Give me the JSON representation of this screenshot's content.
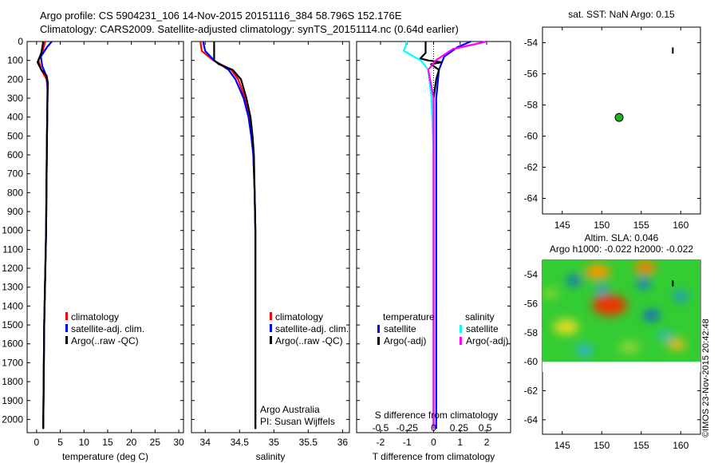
{
  "header": {
    "line1": "Argo profile: CS 5904231_106 14-Nov-2015 20151116_384 58.796S 152.176E",
    "line2": "Climatology: CARS2009. Satellite-adjusted climatology: synTS_20151114.nc (0.64d earlier)"
  },
  "credit": "©IMOS 23-Nov-2015 20:42:48",
  "colors": {
    "climatology": "#ff0000",
    "satellite": "#0000ff",
    "argo": "#000000",
    "sal_satellite": "#00ffff",
    "sal_argo": "#ff00ff",
    "marker": "#1db31d"
  },
  "chart_data": [
    {
      "type": "line",
      "id": "temperature",
      "xlabel": "temperature (deg C)",
      "xlim": [
        -2,
        31
      ],
      "ylim": [
        2070,
        0
      ],
      "xticks": [
        0,
        5,
        10,
        15,
        20,
        25,
        30
      ],
      "yticks": [
        0,
        100,
        200,
        300,
        400,
        500,
        600,
        700,
        800,
        900,
        1000,
        1100,
        1200,
        1300,
        1400,
        1500,
        1600,
        1700,
        1800,
        1900,
        2000
      ],
      "legend": {
        "position": "bottom-right",
        "entries": [
          "climatology",
          "satellite-adj. clim.",
          "Argo(..raw -QC)"
        ]
      },
      "series": [
        {
          "name": "climatology",
          "depth": [
            0,
            50,
            100,
            150,
            200,
            250,
            300,
            500,
            700,
            1000,
            1500,
            2050
          ],
          "values": [
            1.8,
            1.3,
            0.4,
            1.0,
            2.1,
            2.3,
            2.3,
            2.2,
            2.1,
            2.0,
            1.6,
            1.4
          ]
        },
        {
          "name": "satellite-adj. clim.",
          "depth": [
            0,
            30,
            80,
            130,
            180,
            220,
            300,
            500,
            700,
            1000,
            1500,
            2050
          ],
          "values": [
            3.2,
            2.2,
            0.9,
            1.2,
            2.0,
            2.3,
            2.3,
            2.2,
            2.1,
            2.0,
            1.6,
            1.4
          ]
        },
        {
          "name": "Argo(..raw -QC)",
          "depth": [
            0,
            60,
            110,
            150,
            180,
            220,
            300,
            500,
            700,
            1000,
            1500,
            2050
          ],
          "values": [
            1.4,
            1.0,
            0.2,
            1.0,
            2.1,
            2.4,
            2.3,
            2.2,
            2.1,
            2.0,
            1.6,
            1.4
          ]
        }
      ]
    },
    {
      "type": "line",
      "id": "salinity",
      "xlabel": "salinity",
      "xlim": [
        33.8,
        36.1
      ],
      "ylim": [
        2070,
        0
      ],
      "xticks": [
        34,
        34.5,
        35,
        35.5,
        36
      ],
      "legend": {
        "position": "bottom-right",
        "entries": [
          "climatology",
          "satellite-adj. clim.",
          "Argo(..raw -QC)"
        ]
      },
      "annotation": {
        "institution": "Argo Australia",
        "pi": "PI: Susan Wijffels"
      },
      "series": [
        {
          "name": "climatology",
          "depth": [
            0,
            50,
            100,
            150,
            200,
            300,
            400,
            500,
            600,
            800,
            1000,
            1500,
            2050
          ],
          "values": [
            33.93,
            33.95,
            34.12,
            34.38,
            34.48,
            34.58,
            34.64,
            34.68,
            34.7,
            34.72,
            34.73,
            34.73,
            34.73
          ]
        },
        {
          "name": "satellite-adj. clim.",
          "depth": [
            0,
            50,
            100,
            150,
            200,
            300,
            400,
            500,
            600,
            800,
            1000,
            1500,
            2050
          ],
          "values": [
            33.97,
            34.0,
            34.13,
            34.34,
            34.44,
            34.56,
            34.63,
            34.67,
            34.7,
            34.72,
            34.73,
            34.73,
            34.73
          ]
        },
        {
          "name": "Argo(..raw -QC)",
          "depth": [
            0,
            100,
            120,
            150,
            200,
            300,
            400,
            500,
            600,
            800,
            1000,
            1500,
            2050
          ],
          "values": [
            34.13,
            34.13,
            34.2,
            34.4,
            34.52,
            34.6,
            34.66,
            34.69,
            34.71,
            34.72,
            34.73,
            34.73,
            34.73
          ]
        }
      ]
    },
    {
      "type": "line",
      "id": "difference",
      "xlabel": "T difference from climatology",
      "xlabel_top": "S difference from climatology",
      "xlim": [
        -2.9,
        2.9
      ],
      "ylim": [
        2070,
        0
      ],
      "xticks": [
        -2,
        -1,
        0,
        1,
        2
      ],
      "xticks_top_labels": [
        "-0.5",
        "-0.25",
        "0",
        "0.25",
        "0.5"
      ],
      "legend": {
        "position": "bottom",
        "headers": [
          "temperature",
          "salinity"
        ],
        "entries": [
          "satellite",
          "Argo(-adj)",
          "satellite",
          "Argo(-adj)"
        ]
      },
      "series": [
        {
          "name": "satellite",
          "group": "temperature",
          "depth": [
            0,
            30,
            80,
            150,
            300,
            600,
            1000,
            1500,
            2050
          ],
          "values": [
            1.4,
            0.9,
            0.4,
            0.2,
            0.1,
            0.1,
            0.1,
            0.1,
            0.1
          ]
        },
        {
          "name": "Argo(-adj)",
          "group": "temperature",
          "depth": [
            0,
            60,
            90,
            100,
            110,
            120,
            150,
            200,
            300,
            600,
            1000,
            1500,
            2050
          ],
          "values": [
            -0.3,
            -0.3,
            -0.5,
            -0.2,
            0.3,
            -0.1,
            0.2,
            0.1,
            0,
            0,
            0,
            0,
            0
          ]
        },
        {
          "name": "satellite",
          "group": "salinity",
          "depth": [
            0,
            50,
            100,
            150,
            300,
            600,
            1000,
            1500,
            2050
          ],
          "values": [
            -0.25,
            -0.28,
            -0.12,
            -0.05,
            -0.02,
            0,
            0,
            0,
            0
          ]
        },
        {
          "name": "Argo(-adj)",
          "group": "salinity",
          "depth": [
            0,
            40,
            100,
            150,
            300,
            600,
            1000,
            1500,
            2050
          ],
          "values": [
            0.5,
            0.18,
            0.02,
            -0.05,
            0,
            0,
            0,
            0,
            0
          ]
        }
      ]
    },
    {
      "type": "scatter",
      "id": "sst_map",
      "title": "sat. SST: NaN Argo: 0.15",
      "xlim": [
        142.5,
        162.5
      ],
      "ylim": [
        -65,
        -53
      ],
      "xticks": [
        145,
        150,
        155,
        160
      ],
      "yticks": [
        -54,
        -56,
        -58,
        -60,
        -62,
        -64
      ],
      "points": [
        {
          "lon": 152.2,
          "lat": -58.8
        }
      ]
    },
    {
      "type": "heatmap",
      "id": "sla_map",
      "title_line1": "Altim. SLA: 0.046",
      "title_line2": "Argo h1000: -0.022 h2000: -0.022",
      "xlim": [
        142.5,
        162.5
      ],
      "ylim": [
        -65,
        -53
      ],
      "data_lat_range": [
        -60,
        -53
      ],
      "xticks": [
        145,
        150,
        155,
        160
      ],
      "yticks": [
        -54,
        -56,
        -58,
        -60,
        -62,
        -64
      ],
      "anomaly_range": [
        -0.3,
        0.3
      ],
      "anomalies": [
        {
          "lon": 151.0,
          "lat": -56.1,
          "value": 0.28,
          "radius": 2.2
        },
        {
          "lon": 149.5,
          "lat": -53.8,
          "value": 0.2,
          "radius": 1.6
        },
        {
          "lon": 155.5,
          "lat": -53.5,
          "value": 0.22,
          "radius": 1.4
        },
        {
          "lon": 145.5,
          "lat": -57.6,
          "value": 0.13,
          "radius": 1.6
        },
        {
          "lon": 159.5,
          "lat": -58.8,
          "value": 0.17,
          "radius": 1.2
        },
        {
          "lon": 156.3,
          "lat": -56.8,
          "value": -0.27,
          "radius": 1.0
        },
        {
          "lon": 146.5,
          "lat": -54.4,
          "value": -0.26,
          "radius": 0.9
        },
        {
          "lon": 155.3,
          "lat": -54.6,
          "value": -0.24,
          "radius": 0.9
        },
        {
          "lon": 150.0,
          "lat": -55.0,
          "value": -0.18,
          "radius": 0.8
        },
        {
          "lon": 160.0,
          "lat": -55.5,
          "value": -0.18,
          "radius": 0.9
        },
        {
          "lon": 147.8,
          "lat": -59.2,
          "value": -0.12,
          "radius": 1.0
        },
        {
          "lon": 153.5,
          "lat": -59.0,
          "value": 0.06,
          "radius": 1.3
        },
        {
          "lon": 158.0,
          "lat": -58.2,
          "value": -0.1,
          "radius": 0.9
        },
        {
          "lon": 143.5,
          "lat": -55.3,
          "value": 0.06,
          "radius": 1.0
        }
      ]
    }
  ]
}
